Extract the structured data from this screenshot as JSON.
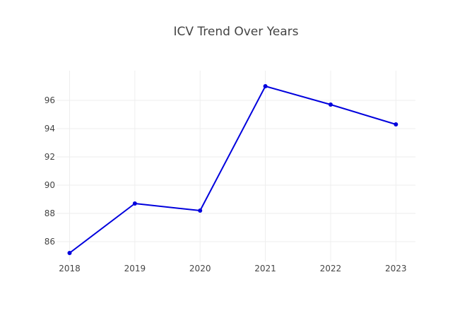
{
  "chart_data": {
    "type": "line",
    "title": "ICV Trend Over Years",
    "xlabel": "",
    "ylabel": "",
    "categories": [
      "2018",
      "2019",
      "2020",
      "2021",
      "2022",
      "2023"
    ],
    "x": [
      2018,
      2019,
      2020,
      2021,
      2022,
      2023
    ],
    "series": [
      {
        "values": [
          85.2,
          88.7,
          88.2,
          97.0,
          95.7,
          94.3
        ],
        "color": "#0000dd"
      }
    ],
    "xlim": [
      2017.8,
      2023.3
    ],
    "ylim": [
      84.6,
      98.1
    ],
    "yticks": [
      86,
      88,
      90,
      92,
      94,
      96
    ],
    "grid": true,
    "legend": "none"
  }
}
